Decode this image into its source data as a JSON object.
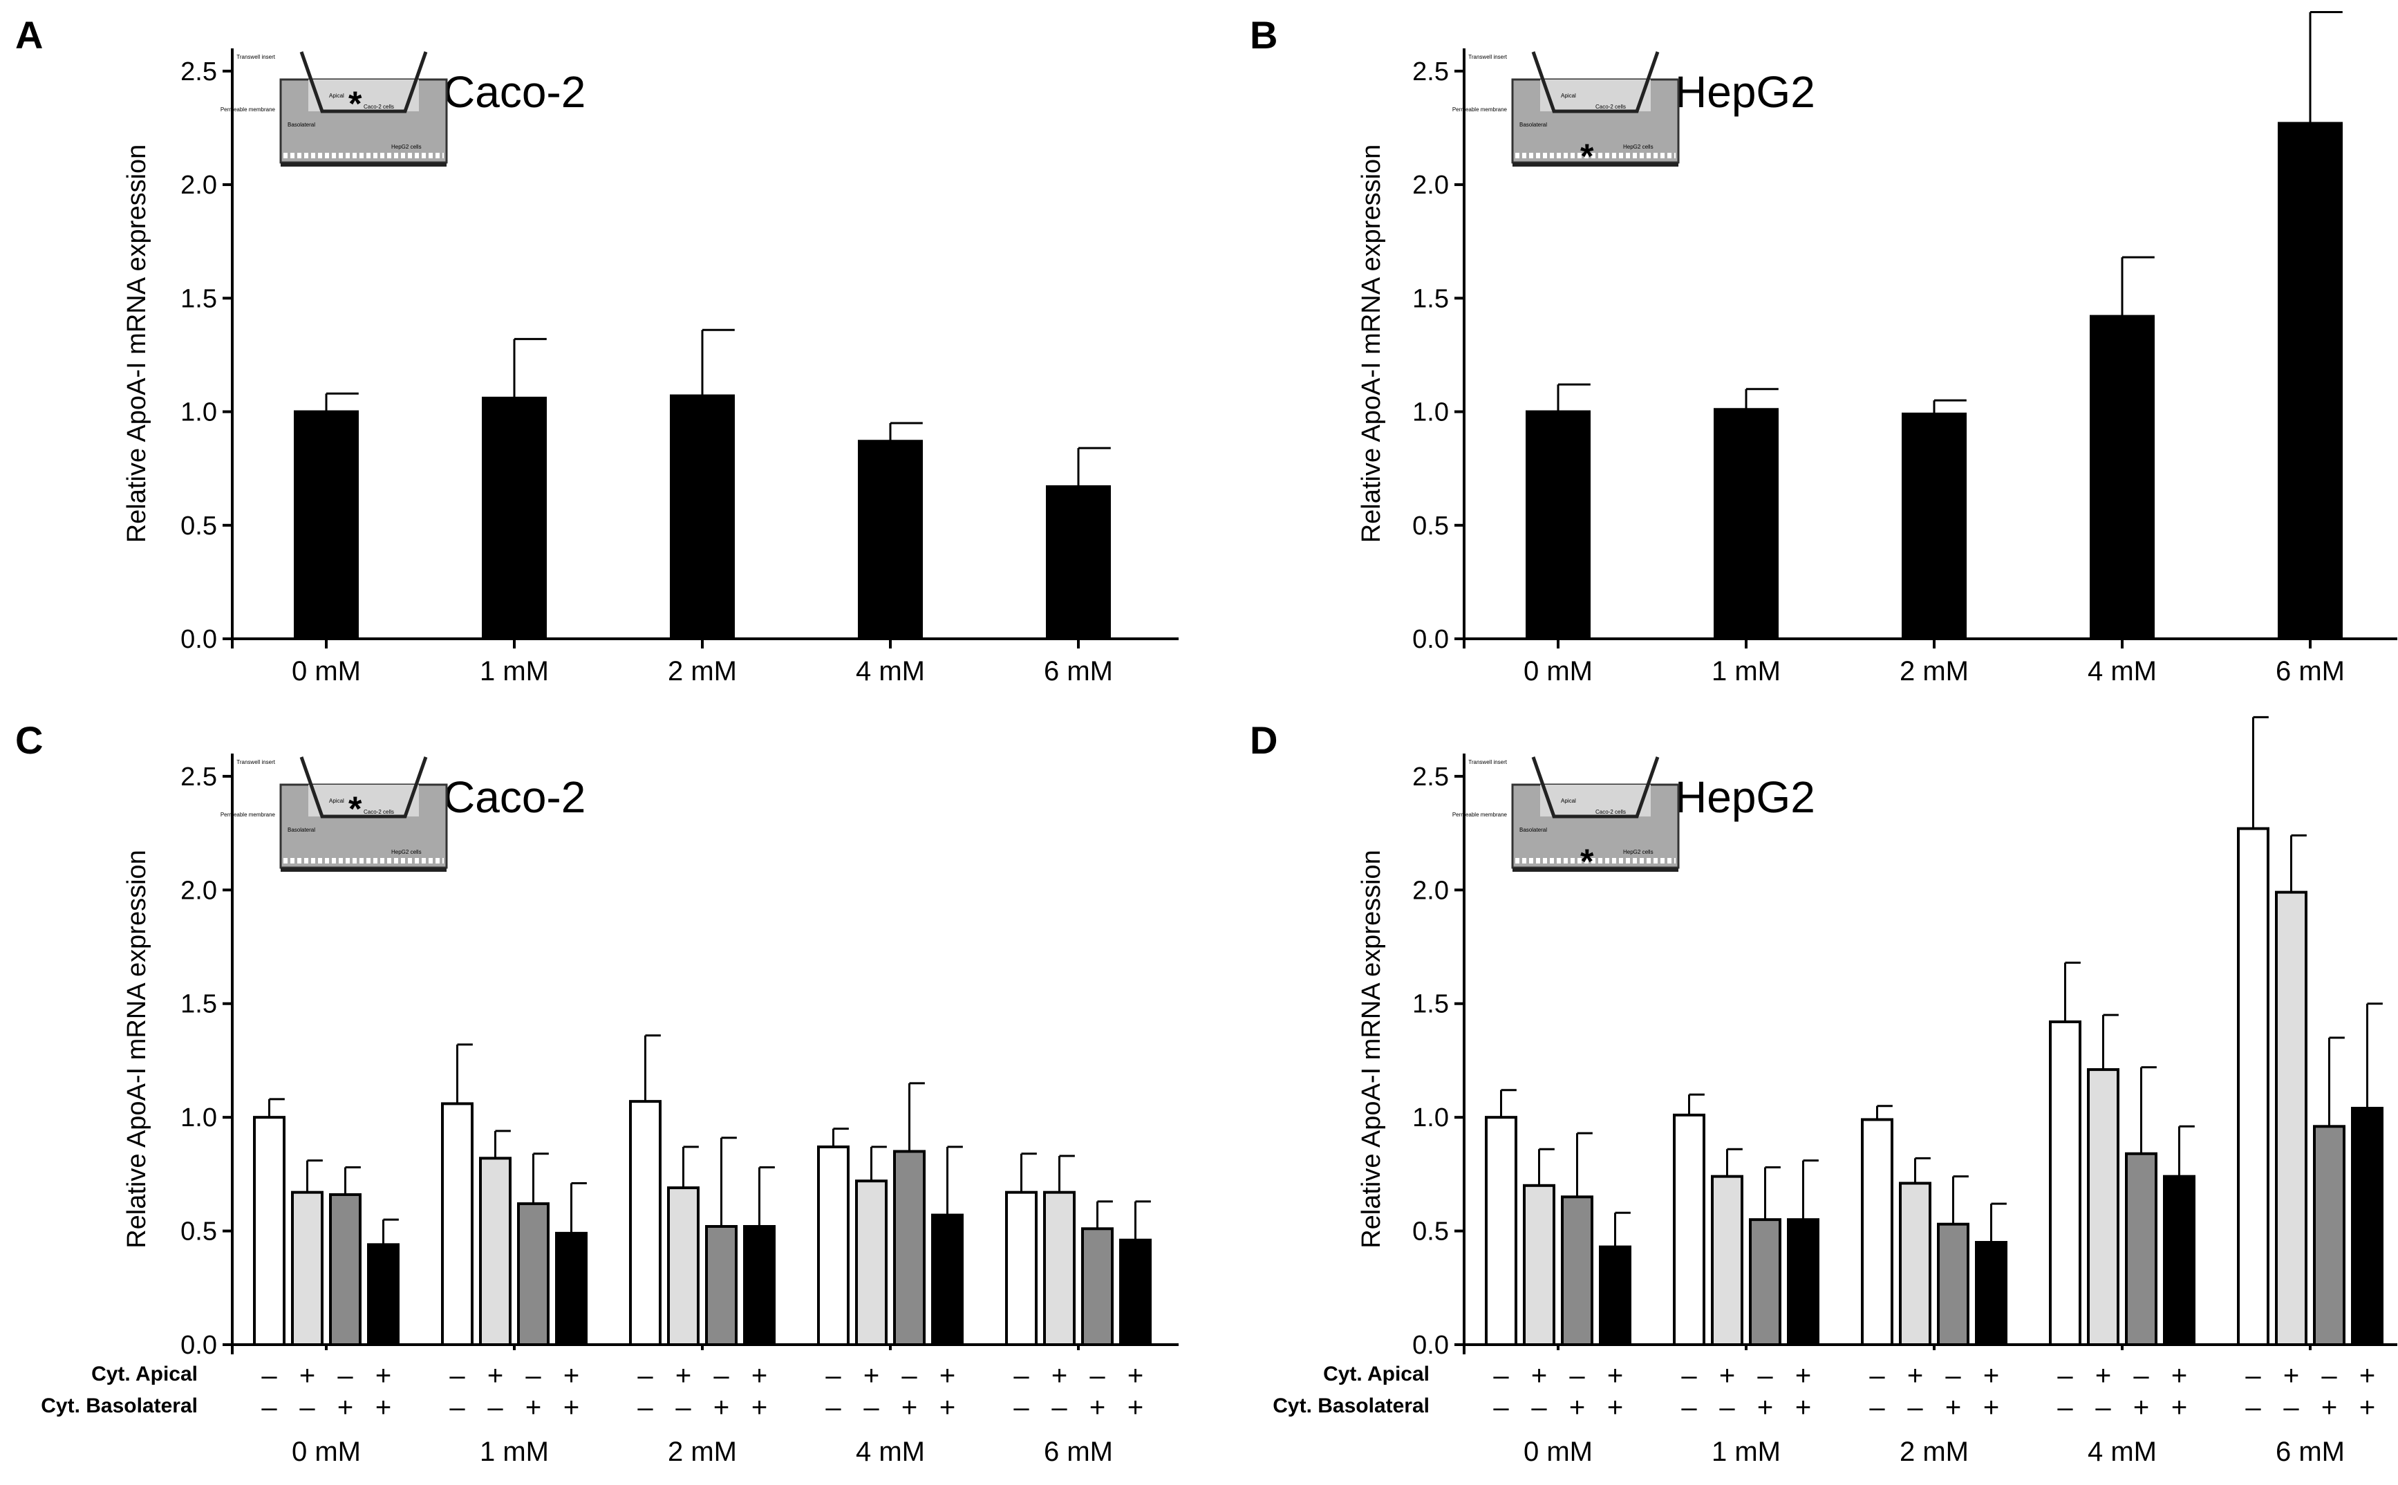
{
  "figure": {
    "ylabel": "Relative ApoA-I mRNA expression",
    "row_labels": {
      "apical": "Cyt. Apical",
      "basolateral": "Cyt. Basolateral"
    },
    "inset_labels": {
      "insert": "Transwell insert",
      "membrane": "Permeable membrane",
      "apical": "Apical",
      "basolateral": "Basolateral",
      "caco": "Caco-2 cells",
      "hepg": "HepG2 cells",
      "marker": "*"
    },
    "signs": {
      "minus": "–",
      "plus": "+"
    },
    "colors": {
      "white": "#ffffff",
      "light": "#dedede",
      "mid": "#8a8a8a",
      "black": "#000000",
      "inset_fill": "#a9a9a9",
      "inset_top": "#d6d6d6"
    }
  },
  "chart_data": [
    {
      "panel": "A",
      "type": "bar",
      "cell_label": "Caco-2",
      "marker_in": "apical",
      "ylabel": "Relative ApoA-I mRNA expression",
      "ylim": [
        0,
        2.6
      ],
      "yticks": [
        "0.0",
        "0.5",
        "1.0",
        "1.5",
        "2.0",
        "2.5"
      ],
      "categories": [
        "0 mM",
        "1 mM",
        "2 mM",
        "4 mM",
        "6 mM"
      ],
      "series": [
        {
          "name": "Caco-2",
          "color": "#000000",
          "values": [
            1.0,
            1.06,
            1.07,
            0.87,
            0.67
          ],
          "errors": [
            0.08,
            0.26,
            0.29,
            0.08,
            0.17
          ]
        }
      ]
    },
    {
      "panel": "B",
      "type": "bar",
      "cell_label": "HepG2",
      "marker_in": "basolateral",
      "ylabel": "Relative ApoA-I mRNA expression",
      "ylim": [
        0,
        2.6
      ],
      "yticks": [
        "0.0",
        "0.5",
        "1.0",
        "1.5",
        "2.0",
        "2.5"
      ],
      "categories": [
        "0 mM",
        "1 mM",
        "2 mM",
        "4 mM",
        "6 mM"
      ],
      "series": [
        {
          "name": "HepG2",
          "color": "#000000",
          "values": [
            1.0,
            1.01,
            0.99,
            1.42,
            2.27
          ],
          "errors": [
            0.12,
            0.09,
            0.06,
            0.26,
            0.49
          ]
        }
      ]
    },
    {
      "panel": "C",
      "type": "bar",
      "cell_label": "Caco-2",
      "marker_in": "apical",
      "ylabel": "Relative ApoA-I mRNA expression",
      "ylim": [
        0,
        2.6
      ],
      "yticks": [
        "0.0",
        "0.5",
        "1.0",
        "1.5",
        "2.0",
        "2.5"
      ],
      "categories": [
        "0 mM",
        "1 mM",
        "2 mM",
        "4 mM",
        "6 mM"
      ],
      "apical_signs": [
        "-",
        "+",
        "-",
        "+"
      ],
      "basolateral_signs": [
        "-",
        "-",
        "+",
        "+"
      ],
      "series": [
        {
          "name": "Cyt. Apical – / Cyt. Basolateral –",
          "color": "#ffffff",
          "values": [
            1.0,
            1.06,
            1.07,
            0.87,
            0.67
          ],
          "errors": [
            0.08,
            0.26,
            0.29,
            0.08,
            0.17
          ]
        },
        {
          "name": "Cyt. Apical + / Cyt. Basolateral –",
          "color": "#dedede",
          "values": [
            0.67,
            0.82,
            0.69,
            0.72,
            0.67
          ],
          "errors": [
            0.14,
            0.12,
            0.18,
            0.15,
            0.16
          ]
        },
        {
          "name": "Cyt. Apical – / Cyt. Basolateral +",
          "color": "#8a8a8a",
          "values": [
            0.66,
            0.62,
            0.52,
            0.85,
            0.51
          ],
          "errors": [
            0.12,
            0.22,
            0.39,
            0.3,
            0.12
          ]
        },
        {
          "name": "Cyt. Apical + / Cyt. Basolateral +",
          "color": "#000000",
          "values": [
            0.44,
            0.49,
            0.52,
            0.57,
            0.46
          ],
          "errors": [
            0.11,
            0.22,
            0.26,
            0.3,
            0.17
          ]
        }
      ]
    },
    {
      "panel": "D",
      "type": "bar",
      "cell_label": "HepG2",
      "marker_in": "basolateral",
      "ylabel": "Relative ApoA-I mRNA expression",
      "ylim": [
        0,
        2.6
      ],
      "yticks": [
        "0.0",
        "0.5",
        "1.0",
        "1.5",
        "2.0",
        "2.5"
      ],
      "categories": [
        "0 mM",
        "1 mM",
        "2 mM",
        "4 mM",
        "6 mM"
      ],
      "apical_signs": [
        "-",
        "+",
        "-",
        "+"
      ],
      "basolateral_signs": [
        "-",
        "-",
        "+",
        "+"
      ],
      "series": [
        {
          "name": "Cyt. Apical – / Cyt. Basolateral –",
          "color": "#ffffff",
          "values": [
            1.0,
            1.01,
            0.99,
            1.42,
            2.27
          ],
          "errors": [
            0.12,
            0.09,
            0.06,
            0.26,
            0.49
          ]
        },
        {
          "name": "Cyt. Apical + / Cyt. Basolateral –",
          "color": "#dedede",
          "values": [
            0.7,
            0.74,
            0.71,
            1.21,
            1.99
          ],
          "errors": [
            0.16,
            0.12,
            0.11,
            0.24,
            0.25
          ]
        },
        {
          "name": "Cyt. Apical – / Cyt. Basolateral +",
          "color": "#8a8a8a",
          "values": [
            0.65,
            0.55,
            0.53,
            0.84,
            0.96
          ],
          "errors": [
            0.28,
            0.23,
            0.21,
            0.38,
            0.39
          ]
        },
        {
          "name": "Cyt. Apical + / Cyt. Basolateral +",
          "color": "#000000",
          "values": [
            0.43,
            0.55,
            0.45,
            0.74,
            1.04
          ],
          "errors": [
            0.15,
            0.26,
            0.17,
            0.22,
            0.46
          ]
        }
      ]
    }
  ]
}
